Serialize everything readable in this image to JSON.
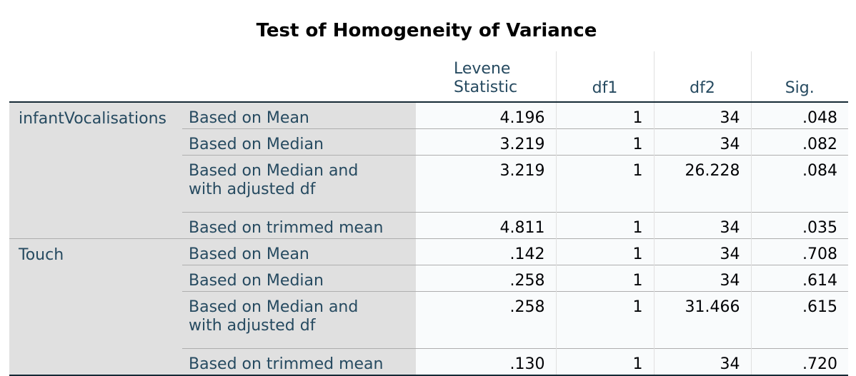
{
  "title": "Test of Homogeneity of Variance",
  "columns": {
    "levene_line1": "Levene",
    "levene_line2": "Statistic",
    "df1": "df1",
    "df2": "df2",
    "sig": "Sig."
  },
  "groups": [
    {
      "name": "infantVocalisations",
      "rows": [
        {
          "label": "Based on Mean",
          "levene": "4.196",
          "df1": "1",
          "df2": "34",
          "sig": ".048"
        },
        {
          "label": "Based on Median",
          "levene": "3.219",
          "df1": "1",
          "df2": "34",
          "sig": ".082"
        },
        {
          "label_line1": "Based on Median and",
          "label_line2": "with adjusted df",
          "levene": "3.219",
          "df1": "1",
          "df2": "26.228",
          "sig": ".084"
        },
        {
          "label": "Based on trimmed mean",
          "levene": "4.811",
          "df1": "1",
          "df2": "34",
          "sig": ".035"
        }
      ]
    },
    {
      "name": "Touch",
      "rows": [
        {
          "label": "Based on Mean",
          "levene": ".142",
          "df1": "1",
          "df2": "34",
          "sig": ".708"
        },
        {
          "label": "Based on Median",
          "levene": ".258",
          "df1": "1",
          "df2": "34",
          "sig": ".614"
        },
        {
          "label_line1": "Based on Median and",
          "label_line2": "with adjusted df",
          "levene": ".258",
          "df1": "1",
          "df2": "31.466",
          "sig": ".615"
        },
        {
          "label": "Based on trimmed mean",
          "levene": ".130",
          "df1": "1",
          "df2": "34",
          "sig": ".720"
        }
      ]
    }
  ]
}
